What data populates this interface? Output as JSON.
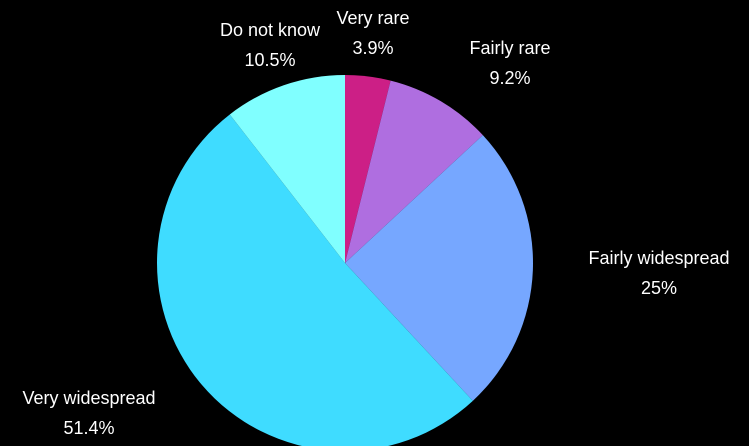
{
  "chart_data": {
    "type": "pie",
    "title": "",
    "slices": [
      {
        "label": "Very rare",
        "value": 3.9,
        "value_label": "3.9%",
        "color": "#CC1F86"
      },
      {
        "label": "Fairly rare",
        "value": 9.2,
        "value_label": "9.2%",
        "color": "#AF6EE0"
      },
      {
        "label": "Fairly widespread",
        "value": 25,
        "value_label": "25%",
        "color": "#76A7FF"
      },
      {
        "label": "Very widespread",
        "value": 51.4,
        "value_label": "51.4%",
        "color": "#3FDCFF"
      },
      {
        "label": "Do not know",
        "value": 10.5,
        "value_label": "10.5%",
        "color": "#80FFFF"
      }
    ],
    "start_angle": "top (12 o'clock)",
    "direction": "clockwise",
    "legend": "none (labels placed outside slices)",
    "background": "#000000",
    "label_color": "#FFFFFF"
  }
}
